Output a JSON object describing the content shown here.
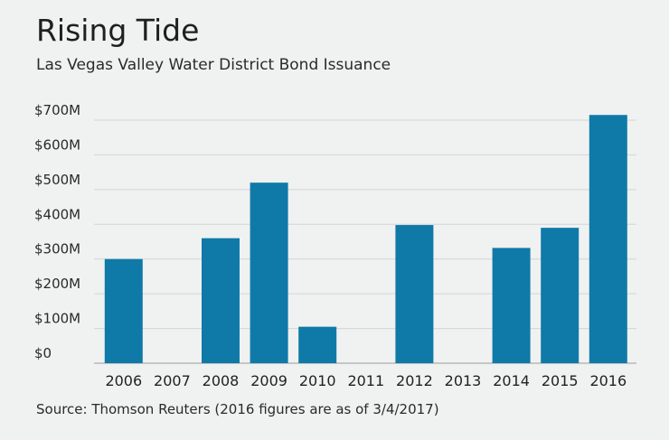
{
  "chart_data": {
    "type": "bar",
    "title": "Rising Tide",
    "subtitle": "Las Vegas Valley Water District Bond Issuance",
    "xlabel": "",
    "ylabel": "",
    "categories": [
      "2006",
      "2007",
      "2008",
      "2009",
      "2010",
      "2011",
      "2012",
      "2013",
      "2014",
      "2015",
      "2016"
    ],
    "values": [
      300,
      0,
      360,
      520,
      105,
      0,
      398,
      0,
      332,
      390,
      715
    ],
    "ylim": [
      0,
      700
    ],
    "yticks": [
      0,
      100,
      200,
      300,
      400,
      500,
      600,
      700
    ],
    "ytick_labels": [
      "$0",
      "$100M",
      "$200M",
      "$300M",
      "$400M",
      "$500M",
      "$600M",
      "$700M"
    ],
    "units": "millions of dollars",
    "grid": true,
    "legend": "none",
    "bar_color": "#0f7aa8",
    "source": "Source: Thomson Reuters (2016 figures are as of 3/4/2017)"
  }
}
